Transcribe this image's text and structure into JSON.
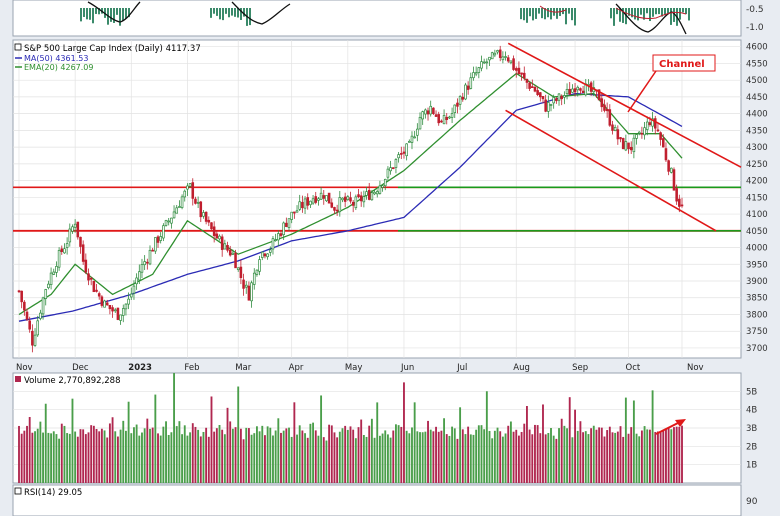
{
  "colors": {
    "up": "#2e8b3e",
    "down": "#c01e2e",
    "vol_up": "#4a9e4a",
    "vol_down": "#b0274f",
    "ma50": "#2b2bb5",
    "ema20": "#2f8f2f",
    "resistance": "#e01818",
    "support": "#1b9a1b",
    "channel": "#e01818",
    "panel_bg": "#ffffff",
    "grid": "#e2e2e2",
    "frame_bg": "#e8ecf2"
  },
  "header": {
    "price_legend": "S&P 500 Large Cap Index (Daily) 4117.37",
    "ma_legend": "MA(50) 4361.53",
    "ema_legend": "EMA(20) 4267.09",
    "volume_legend": "Volume 2,770,892,288",
    "rsi_legend": "RSI(14) 29.05",
    "top_ticks": [
      "-0.5",
      "-1.0"
    ],
    "rsi_tick": "90"
  },
  "annotation": {
    "channel_label": "Channel"
  },
  "chart_data": {
    "type": "candlestick",
    "x_month_labels": [
      "Nov",
      "Dec",
      "2023",
      "Feb",
      "Mar",
      "Apr",
      "May",
      "Jun",
      "Jul",
      "Aug",
      "Sep",
      "Oct",
      "Nov"
    ],
    "month_label_index": [
      0,
      21,
      42,
      63,
      82,
      102,
      123,
      144,
      165,
      186,
      208,
      228,
      250
    ],
    "y_ticks": [
      3700,
      3750,
      3800,
      3850,
      3900,
      3950,
      4000,
      4050,
      4100,
      4150,
      4200,
      4250,
      4300,
      4350,
      4400,
      4450,
      4500,
      4550,
      4600
    ],
    "ylim": [
      3670,
      4620
    ],
    "price_keypoints": [
      [
        0,
        3870
      ],
      [
        3,
        3780
      ],
      [
        5,
        3720
      ],
      [
        10,
        3880
      ],
      [
        14,
        3960
      ],
      [
        18,
        4020
      ],
      [
        21,
        4080
      ],
      [
        24,
        3960
      ],
      [
        28,
        3880
      ],
      [
        32,
        3830
      ],
      [
        37,
        3800
      ],
      [
        41,
        3840
      ],
      [
        45,
        3930
      ],
      [
        50,
        4000
      ],
      [
        56,
        4080
      ],
      [
        61,
        4150
      ],
      [
        64,
        4180
      ],
      [
        68,
        4100
      ],
      [
        73,
        4040
      ],
      [
        77,
        4000
      ],
      [
        80,
        3980
      ],
      [
        84,
        3890
      ],
      [
        86,
        3860
      ],
      [
        90,
        3980
      ],
      [
        94,
        4000
      ],
      [
        98,
        4050
      ],
      [
        101,
        4090
      ],
      [
        105,
        4120
      ],
      [
        110,
        4150
      ],
      [
        114,
        4160
      ],
      [
        118,
        4120
      ],
      [
        121,
        4140
      ],
      [
        125,
        4130
      ],
      [
        129,
        4150
      ],
      [
        133,
        4170
      ],
      [
        137,
        4210
      ],
      [
        142,
        4270
      ],
      [
        146,
        4300
      ],
      [
        150,
        4390
      ],
      [
        154,
        4420
      ],
      [
        158,
        4370
      ],
      [
        162,
        4400
      ],
      [
        166,
        4460
      ],
      [
        170,
        4510
      ],
      [
        174,
        4550
      ],
      [
        178,
        4570
      ],
      [
        182,
        4580
      ],
      [
        185,
        4540
      ],
      [
        189,
        4500
      ],
      [
        193,
        4470
      ],
      [
        197,
        4420
      ],
      [
        201,
        4440
      ],
      [
        205,
        4460
      ],
      [
        209,
        4490
      ],
      [
        213,
        4470
      ],
      [
        217,
        4450
      ],
      [
        221,
        4380
      ],
      [
        225,
        4310
      ],
      [
        229,
        4300
      ],
      [
        233,
        4340
      ],
      [
        236,
        4380
      ],
      [
        239,
        4350
      ],
      [
        242,
        4270
      ],
      [
        244,
        4220
      ],
      [
        246,
        4150
      ],
      [
        248,
        4117
      ]
    ],
    "ma50_keypoints": [
      [
        0,
        3780
      ],
      [
        20,
        3810
      ],
      [
        42,
        3860
      ],
      [
        63,
        3920
      ],
      [
        82,
        3960
      ],
      [
        102,
        4020
      ],
      [
        123,
        4050
      ],
      [
        144,
        4090
      ],
      [
        165,
        4240
      ],
      [
        186,
        4410
      ],
      [
        208,
        4460
      ],
      [
        228,
        4450
      ],
      [
        248,
        4362
      ]
    ],
    "ema20_keypoints": [
      [
        0,
        3800
      ],
      [
        12,
        3860
      ],
      [
        21,
        3950
      ],
      [
        35,
        3860
      ],
      [
        50,
        3920
      ],
      [
        63,
        4080
      ],
      [
        82,
        3980
      ],
      [
        102,
        4040
      ],
      [
        123,
        4120
      ],
      [
        144,
        4230
      ],
      [
        165,
        4380
      ],
      [
        186,
        4520
      ],
      [
        200,
        4450
      ],
      [
        215,
        4460
      ],
      [
        228,
        4340
      ],
      [
        240,
        4340
      ],
      [
        248,
        4267
      ]
    ],
    "resistance_level": 4180,
    "support_level": 4050,
    "volume_ylim": [
      0,
      6
    ],
    "volume_ticks": [
      "5B",
      "4B",
      "3B",
      "2B",
      "1B"
    ],
    "volume_billions_sample": [
      3.0,
      2.8,
      2.6,
      3.1,
      3.3,
      2.8,
      2.7,
      2.9,
      3.2,
      2.6,
      4.3,
      2.7,
      2.9,
      3.0,
      2.8,
      2.6,
      3.0,
      3.3,
      2.9,
      2.8,
      5.0,
      2.7,
      2.5,
      2.9,
      3.1,
      2.8,
      2.6,
      2.9,
      3.0,
      3.2,
      2.8
    ]
  }
}
